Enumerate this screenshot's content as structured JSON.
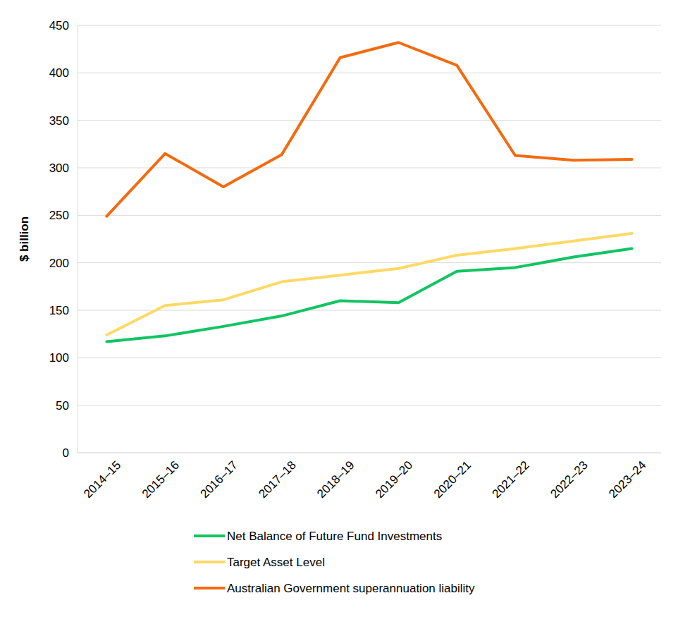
{
  "chart_data": {
    "type": "line",
    "y_label": "$ billion",
    "categories": [
      "2014–15",
      "2015–16",
      "2016–17",
      "2017–18",
      "2018–19",
      "2019–20",
      "2020–21",
      "2021–22",
      "2022–23",
      "2023–24"
    ],
    "series": [
      {
        "name": "Net Balance of Future Fund Investments",
        "color": "#12C462",
        "values": [
          117,
          123,
          133,
          144,
          160,
          158,
          191,
          195,
          206,
          215
        ]
      },
      {
        "name": "Target Asset Level",
        "color": "#FFD966",
        "values": [
          124,
          155,
          161,
          180,
          187,
          194,
          208,
          215,
          223,
          231
        ]
      },
      {
        "name": "Australian Government superannuation liability",
        "color": "#F46A10",
        "values": [
          249,
          315,
          280,
          314,
          416,
          432,
          408,
          313,
          308,
          309
        ]
      }
    ],
    "ylim": [
      0,
      450
    ],
    "yticks": [
      0,
      50,
      100,
      150,
      200,
      250,
      300,
      350,
      400,
      450
    ],
    "grid": true,
    "legend": "bottom"
  }
}
